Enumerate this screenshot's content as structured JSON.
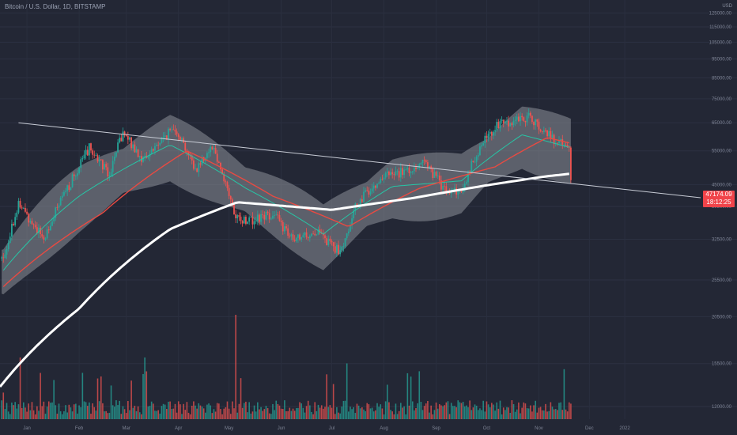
{
  "header": {
    "symbol_line": "Bitcoin / U.S. Dollar, 1D, BITSTAMP"
  },
  "axis": {
    "currency": "USD",
    "y_ticks": [
      "135000.00",
      "125000.00",
      "115000.00",
      "105000.00",
      "95000.00",
      "85000.00",
      "75000.00",
      "65000.00",
      "55000.00",
      "45000.00",
      "39500.00",
      "32500.00",
      "25500.00",
      "20500.00",
      "15500.00",
      "12000.00",
      "9500.00",
      "7500.00",
      "5000.00"
    ],
    "x_ticks": [
      "Jan",
      "Feb",
      "Mar",
      "Apr",
      "May",
      "Jun",
      "Jul",
      "Aug",
      "Sep",
      "Oct",
      "Nov",
      "Dec",
      "2022"
    ]
  },
  "price_label": {
    "price": "47174.09",
    "countdown": "18:12:25",
    "color": "#f0444a"
  },
  "colors": {
    "background": "#232735",
    "bull": "#26a69a",
    "bear": "#ef5350",
    "ma_fast": "#26c6a6",
    "ma_mid": "#e84a42",
    "ma_slow": "#ffffff",
    "band_fill": "#8c8f97",
    "trendline": "#c8ccd6"
  },
  "chart_data": {
    "type": "candlestick",
    "title": "Bitcoin / U.S. Dollar, 1D, BITSTAMP",
    "timeframe": "1D",
    "log_scale": true,
    "ylim": [
      5000,
      135000
    ],
    "x_range": [
      "2020-12-30",
      "2022-01-20"
    ],
    "last_price": 47174.09,
    "series": [
      {
        "name": "",
        "kind": "close_path",
        "x": [
          "2021-01-01",
          "2021-01-10",
          "2021-01-25",
          "2021-02-10",
          "2021-02-21",
          "2021-03-05",
          "2021-03-13",
          "2021-03-25",
          "2021-04-13",
          "2021-04-25",
          "2021-05-05",
          "2021-05-19",
          "2021-05-31",
          "2021-06-10",
          "2021-06-22",
          "2021-07-05",
          "2021-07-20",
          "2021-07-31",
          "2021-08-14",
          "2021-08-31",
          "2021-09-07",
          "2021-09-21",
          "2021-09-30",
          "2021-10-10",
          "2021-10-20",
          "2021-11-09",
          "2021-11-25",
          "2021-12-03",
          "2021-12-04"
        ],
        "values": [
          29000,
          40000,
          32500,
          45500,
          56000,
          48000,
          61000,
          52000,
          63500,
          49000,
          57000,
          36500,
          36500,
          38000,
          32000,
          34000,
          30000,
          41000,
          47000,
          49000,
          52000,
          43000,
          43500,
          55000,
          63500,
          67500,
          58000,
          56000,
          47174
        ]
      },
      {
        "name": "",
        "kind": "moving_average_20",
        "x": [
          "2021-01-01",
          "2021-02-15",
          "2021-04-10",
          "2021-05-25",
          "2021-07-10",
          "2021-08-20",
          "2021-09-30",
          "2021-11-05",
          "2021-12-04"
        ],
        "values": [
          27000,
          42000,
          57000,
          44000,
          33500,
          44500,
          46000,
          60500,
          56000
        ]
      },
      {
        "name": "",
        "kind": "moving_average_50",
        "x": [
          "2021-01-01",
          "2021-03-01",
          "2021-04-20",
          "2021-06-10",
          "2021-07-25",
          "2021-09-05",
          "2021-10-20",
          "2021-11-20",
          "2021-12-04"
        ],
        "values": [
          24500,
          38000,
          55000,
          42000,
          35000,
          44000,
          50000,
          59500,
          57500
        ]
      },
      {
        "name": "",
        "kind": "moving_average_200",
        "x": [
          "2020-12-30",
          "2021-02-15",
          "2021-04-10",
          "2021-05-20",
          "2021-07-15",
          "2021-09-01",
          "2021-10-15",
          "2021-11-20",
          "2021-12-04"
        ],
        "values": [
          13500,
          21500,
          34500,
          40500,
          38700,
          41500,
          44800,
          47300,
          48000
        ]
      },
      {
        "name": "",
        "kind": "trendline",
        "x": [
          "2021-01-10",
          "2022-01-20"
        ],
        "values": [
          65000,
          43000
        ]
      }
    ],
    "volume": {
      "notable_spikes": [
        {
          "date": "2021-05-19",
          "level": "max"
        },
        {
          "date": "2021-01-11",
          "level": "high"
        },
        {
          "date": "2021-03-26",
          "level": "high"
        }
      ]
    }
  }
}
